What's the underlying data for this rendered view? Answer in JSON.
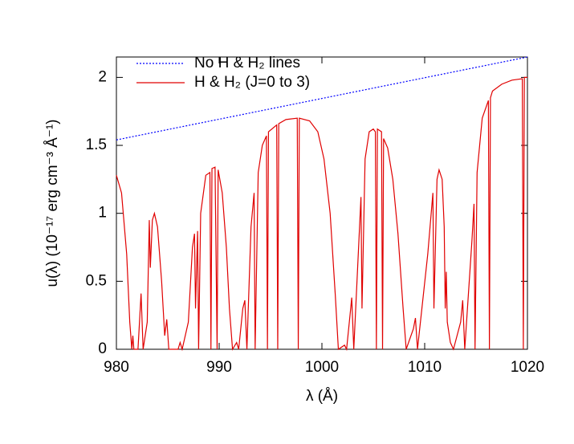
{
  "chart_data": {
    "type": "line",
    "xlabel": "λ (Å)",
    "ylabel": "u(λ) (10⁻¹⁷ erg cm⁻³ Å⁻¹)",
    "xlim": [
      980,
      1020
    ],
    "xticks": [
      980,
      990,
      1000,
      1010,
      1020
    ],
    "ylim": [
      0,
      2.15
    ],
    "yticks": [
      0,
      0.5,
      1,
      1.5,
      2
    ],
    "legend": "top-left",
    "series": [
      {
        "name": "No H & H₂ lines",
        "color": "#0000ff",
        "line_style": "dotted",
        "x": [
          980,
          1020
        ],
        "values": [
          1.54,
          2.15
        ]
      },
      {
        "name": "H & H₂ (J=0 to 3)",
        "color": "#e00000",
        "line_style": "solid",
        "x": [
          980,
          980.5,
          981,
          981.3,
          981.5,
          981.6,
          981.7,
          982.1,
          982.4,
          982.6,
          983.0,
          983.2,
          983.3,
          983.5,
          983.7,
          984.0,
          984.4,
          984.7,
          984.9,
          985.1,
          986.0,
          986.2,
          986.4,
          987.0,
          987.4,
          987.6,
          987.7,
          987.9,
          988.0,
          988.2,
          988.7,
          989.1,
          989.2,
          989.3,
          989.6,
          989.8,
          989.9,
          990.3,
          990.7,
          991.0,
          991.3,
          991.7,
          991.9,
          992.3,
          992.5,
          992.7,
          993.1,
          993.4,
          993.5,
          993.8,
          994.2,
          994.6,
          994.7,
          994.8,
          995.6,
          995.7,
          995.8,
          996.5,
          997.6,
          997.7,
          997.8,
          998.8,
          999.6,
          1000.2,
          1000.8,
          1001.3,
          1001.6,
          1002.2,
          1002.4,
          1002.8,
          1002.9,
          1003.1,
          1003.6,
          1003.8,
          1003.9,
          1004.2,
          1004.6,
          1005.0,
          1005.2,
          1005.3,
          1005.4,
          1005.8,
          1005.9,
          1006.0,
          1006.4,
          1006.9,
          1007.4,
          1007.9,
          1008.2,
          1008.9,
          1009.1,
          1009.3,
          1010.3,
          1010.8,
          1010.9,
          1011.2,
          1011.4,
          1011.7,
          1011.9,
          1012.0,
          1012.1,
          1012.2,
          1012.5,
          1012.8,
          1013.5,
          1013.7,
          1013.9,
          1014.6,
          1014.8,
          1014.9,
          1015.1,
          1015.6,
          1016.2,
          1016.3,
          1016.4,
          1016.6,
          1017.5,
          1018.5,
          1019.5,
          1019.6,
          1019.7,
          1020
        ],
        "values": [
          1.28,
          1.15,
          0.7,
          0.2,
          0,
          0.1,
          0,
          0,
          0.41,
          0,
          0.2,
          0.95,
          0.6,
          0.95,
          1.0,
          0.9,
          0.5,
          0.1,
          0.22,
          0,
          0,
          0.05,
          0,
          0.2,
          0.75,
          0.85,
          0.3,
          0.87,
          0,
          1.0,
          1.28,
          1.3,
          0,
          1.33,
          1.34,
          0,
          1.32,
          1.15,
          0.75,
          0.3,
          0,
          0.05,
          0,
          0.3,
          0.36,
          0,
          0.9,
          1.15,
          0,
          1.3,
          1.5,
          1.57,
          0,
          1.6,
          1.65,
          0,
          1.66,
          1.69,
          1.7,
          0,
          1.7,
          1.68,
          1.6,
          1.4,
          1.0,
          0.4,
          0,
          0.03,
          0,
          0.3,
          0.38,
          0,
          0.8,
          1.12,
          0.3,
          1.4,
          1.6,
          1.62,
          1.6,
          0,
          1.62,
          1.6,
          0,
          1.55,
          1.48,
          1.25,
          0.85,
          0.3,
          0,
          0.15,
          0.23,
          0,
          0.7,
          1.15,
          0.3,
          1.25,
          1.32,
          1.25,
          0.9,
          0.3,
          0.57,
          0.2,
          0.05,
          0,
          0.2,
          0.36,
          0,
          0.8,
          1.07,
          0,
          1.3,
          1.7,
          1.83,
          0,
          1.85,
          1.9,
          1.95,
          1.98,
          1.99,
          0,
          2.0,
          2.0
        ]
      }
    ]
  }
}
